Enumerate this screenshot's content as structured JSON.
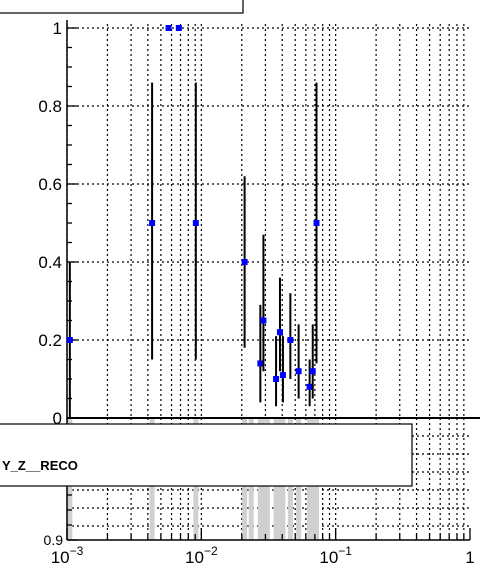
{
  "chart_data": [
    {
      "type": "scatter",
      "title": "",
      "xlabel": "",
      "ylabel": "",
      "x_scale": "log",
      "xlim": [
        0.001,
        1
      ],
      "ylim": [
        0,
        1.03
      ],
      "grid": true,
      "y_ticks": [
        {
          "value": 0,
          "label": "0"
        },
        {
          "value": 0.2,
          "label": "0.2"
        },
        {
          "value": 0.4,
          "label": "0.4"
        },
        {
          "value": 0.6,
          "label": "0.6"
        },
        {
          "value": 0.8,
          "label": "0.8"
        },
        {
          "value": 1,
          "label": "1"
        }
      ],
      "marker_color": "#0000ff",
      "points": [
        {
          "x": 0.00105,
          "y": 0.2,
          "err_low": 0.2,
          "err_high": 0.2
        },
        {
          "x": 0.0043,
          "y": 0.5,
          "err_low": 0.35,
          "err_high": 0.36
        },
        {
          "x": 0.0057,
          "y": 1.0,
          "err_low": 0.0,
          "err_high": 0.0
        },
        {
          "x": 0.0068,
          "y": 1.0,
          "err_low": 0.0,
          "err_high": 0.0
        },
        {
          "x": 0.0091,
          "y": 0.5,
          "err_low": 0.35,
          "err_high": 0.36
        },
        {
          "x": 0.021,
          "y": 0.4,
          "err_low": 0.22,
          "err_high": 0.22
        },
        {
          "x": 0.0275,
          "y": 0.14,
          "err_low": 0.1,
          "err_high": 0.15
        },
        {
          "x": 0.029,
          "y": 0.25,
          "err_low": 0.13,
          "err_high": 0.22
        },
        {
          "x": 0.036,
          "y": 0.1,
          "err_low": 0.07,
          "err_high": 0.11
        },
        {
          "x": 0.0385,
          "y": 0.22,
          "err_low": 0.1,
          "err_high": 0.14
        },
        {
          "x": 0.0405,
          "y": 0.11,
          "err_low": 0.07,
          "err_high": 0.1
        },
        {
          "x": 0.046,
          "y": 0.2,
          "err_low": 0.1,
          "err_high": 0.12
        },
        {
          "x": 0.053,
          "y": 0.12,
          "err_low": 0.07,
          "err_high": 0.12
        },
        {
          "x": 0.064,
          "y": 0.08,
          "err_low": 0.05,
          "err_high": 0.07
        },
        {
          "x": 0.0675,
          "y": 0.12,
          "err_low": 0.07,
          "err_high": 0.12
        },
        {
          "x": 0.072,
          "y": 0.5,
          "err_low": 0.36,
          "err_high": 0.36
        }
      ]
    },
    {
      "type": "bar",
      "title": "",
      "xlabel": "",
      "ylabel": "",
      "x_scale": "log",
      "xlim": [
        0.001,
        1
      ],
      "y_ticks": [
        {
          "value": 0.9,
          "label": "0.9"
        }
      ],
      "x_ticks": [
        {
          "value": 0.001,
          "label": "10",
          "exp": "−3"
        },
        {
          "value": 0.01,
          "label": "10",
          "exp": "−2"
        },
        {
          "value": 0.1,
          "label": "10",
          "exp": "−1"
        },
        {
          "value": 1,
          "label": "1",
          "exp": ""
        }
      ],
      "bar_color": "#d0d0d0",
      "bars": [
        {
          "x": 0.00105
        },
        {
          "x": 0.0043
        },
        {
          "x": 0.0091
        },
        {
          "x": 0.021
        },
        {
          "x": 0.0235
        },
        {
          "x": 0.0275
        },
        {
          "x": 0.029
        },
        {
          "x": 0.031
        },
        {
          "x": 0.036
        },
        {
          "x": 0.0385
        },
        {
          "x": 0.0405
        },
        {
          "x": 0.046
        },
        {
          "x": 0.053
        },
        {
          "x": 0.064
        },
        {
          "x": 0.0675
        },
        {
          "x": 0.072
        }
      ]
    }
  ],
  "legend": {
    "entry": "Y_Z__RECO"
  }
}
